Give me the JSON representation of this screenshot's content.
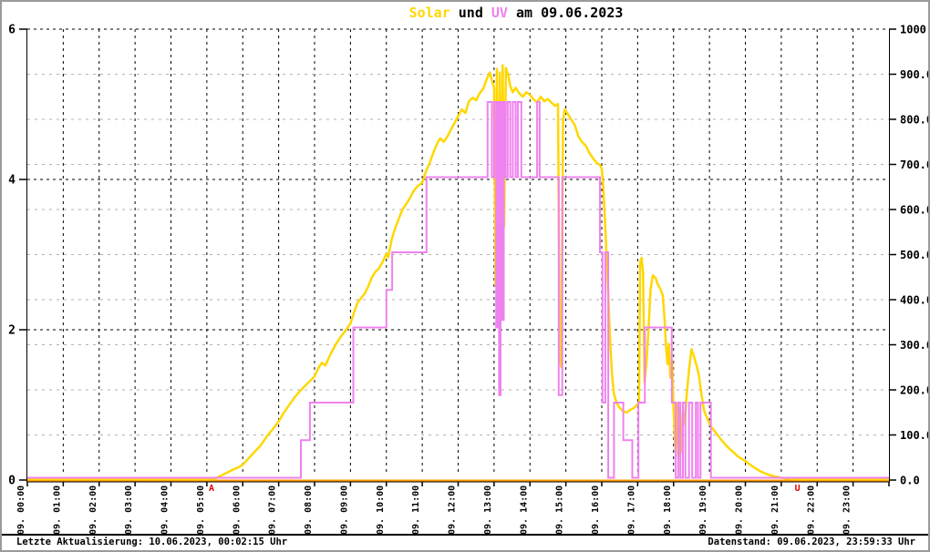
{
  "title": {
    "solar": "Solar",
    "und": " und ",
    "uv": "UV",
    "date": " am 09.06.2023"
  },
  "status_bar": {
    "left": "Letzte Aktualisierung: 10.06.2023, 00:02:15 Uhr",
    "right": "Datenstand: 09.06.2023, 23:59:33 Uhr"
  },
  "chart_data": {
    "type": "line",
    "title": "Solar und UV am 09.06.2023",
    "colors": {
      "solar": "#FFD700",
      "uv": "#EE82EE",
      "zero_line": "#FF9800",
      "marker": "#DD0000",
      "grid_major": "#000000",
      "grid_minor": "#b2b2b2"
    },
    "x_axis": {
      "hours": 24,
      "labels": [
        "09. 00:00",
        "09. 01:00",
        "09. 02:00",
        "09. 03:00",
        "09. 04:00",
        "09. 05:00",
        "09. 06:00",
        "09. 07:00",
        "09. 08:00",
        "09. 09:00",
        "09. 10:00",
        "09. 11:00",
        "09. 12:00",
        "09. 13:00",
        "09. 14:00",
        "09. 15:00",
        "09. 16:00",
        "09. 17:00",
        "09. 18:00",
        "09. 19:00",
        "09. 20:00",
        "09. 21:00",
        "09. 22:00",
        "09. 23:00"
      ]
    },
    "y_left": {
      "min": 0,
      "max": 6,
      "tick_step": 2,
      "labels": [
        "0",
        "2",
        "4",
        "6"
      ]
    },
    "y_right": {
      "min": 0,
      "max": 1000,
      "tick_step": 100,
      "labels": [
        "0.0",
        "100.0",
        "200.0",
        "300.0",
        "400.0",
        "500.0",
        "600.0",
        "700.0",
        "800.0",
        "900.0",
        "1000.0"
      ]
    },
    "markers": [
      {
        "label": "A",
        "t": 5.13
      },
      {
        "label": "U",
        "t": 21.45
      }
    ],
    "series": [
      {
        "name": "Solar",
        "axis": "right",
        "style": "line",
        "points": [
          [
            0,
            0
          ],
          [
            5.2,
            0
          ],
          [
            5.35,
            6
          ],
          [
            5.5,
            12
          ],
          [
            5.7,
            20
          ],
          [
            5.9,
            27
          ],
          [
            6.0,
            32
          ],
          [
            6.15,
            45
          ],
          [
            6.3,
            58
          ],
          [
            6.5,
            75
          ],
          [
            6.7,
            98
          ],
          [
            6.85,
            112
          ],
          [
            7.0,
            128
          ],
          [
            7.15,
            148
          ],
          [
            7.3,
            165
          ],
          [
            7.45,
            182
          ],
          [
            7.6,
            196
          ],
          [
            7.75,
            208
          ],
          [
            7.9,
            220
          ],
          [
            8.0,
            228
          ],
          [
            8.1,
            245
          ],
          [
            8.2,
            258
          ],
          [
            8.3,
            252
          ],
          [
            8.45,
            278
          ],
          [
            8.6,
            300
          ],
          [
            8.75,
            318
          ],
          [
            8.85,
            328
          ],
          [
            9.0,
            345
          ],
          [
            9.1,
            370
          ],
          [
            9.2,
            392
          ],
          [
            9.3,
            402
          ],
          [
            9.4,
            412
          ],
          [
            9.5,
            428
          ],
          [
            9.6,
            448
          ],
          [
            9.7,
            460
          ],
          [
            9.8,
            468
          ],
          [
            9.9,
            482
          ],
          [
            10.0,
            500
          ],
          [
            10.05,
            492
          ],
          [
            10.15,
            532
          ],
          [
            10.25,
            558
          ],
          [
            10.35,
            578
          ],
          [
            10.45,
            598
          ],
          [
            10.55,
            610
          ],
          [
            10.65,
            622
          ],
          [
            10.75,
            638
          ],
          [
            10.85,
            648
          ],
          [
            11.0,
            658
          ],
          [
            11.1,
            682
          ],
          [
            11.2,
            700
          ],
          [
            11.3,
            722
          ],
          [
            11.4,
            742
          ],
          [
            11.5,
            756
          ],
          [
            11.6,
            748
          ],
          [
            11.7,
            760
          ],
          [
            11.8,
            775
          ],
          [
            11.9,
            790
          ],
          [
            12.0,
            805
          ],
          [
            12.1,
            820
          ],
          [
            12.2,
            812
          ],
          [
            12.3,
            838
          ],
          [
            12.4,
            846
          ],
          [
            12.5,
            840
          ],
          [
            12.6,
            856
          ],
          [
            12.7,
            866
          ],
          [
            12.8,
            888
          ],
          [
            12.88,
            902
          ],
          [
            12.95,
            882
          ],
          [
            13.0,
            868
          ],
          [
            13.04,
            430
          ],
          [
            13.08,
            910
          ],
          [
            13.12,
            352
          ],
          [
            13.16,
            902
          ],
          [
            13.2,
            478
          ],
          [
            13.24,
            918
          ],
          [
            13.28,
            560
          ],
          [
            13.33,
            912
          ],
          [
            13.4,
            895
          ],
          [
            13.45,
            872
          ],
          [
            13.52,
            858
          ],
          [
            13.6,
            868
          ],
          [
            13.7,
            856
          ],
          [
            13.8,
            848
          ],
          [
            13.9,
            858
          ],
          [
            14.0,
            852
          ],
          [
            14.1,
            842
          ],
          [
            14.2,
            836
          ],
          [
            14.3,
            848
          ],
          [
            14.4,
            838
          ],
          [
            14.5,
            843
          ],
          [
            14.6,
            835
          ],
          [
            14.7,
            828
          ],
          [
            14.78,
            832
          ],
          [
            14.81,
            520
          ],
          [
            14.84,
            258
          ],
          [
            14.88,
            248
          ],
          [
            14.92,
            795
          ],
          [
            14.97,
            820
          ],
          [
            15.05,
            810
          ],
          [
            15.15,
            798
          ],
          [
            15.25,
            785
          ],
          [
            15.35,
            760
          ],
          [
            15.45,
            748
          ],
          [
            15.55,
            740
          ],
          [
            15.65,
            724
          ],
          [
            15.75,
            712
          ],
          [
            15.85,
            702
          ],
          [
            15.95,
            697
          ],
          [
            16.0,
            688
          ],
          [
            16.04,
            650
          ],
          [
            16.09,
            575
          ],
          [
            16.14,
            488
          ],
          [
            16.19,
            392
          ],
          [
            16.24,
            298
          ],
          [
            16.29,
            228
          ],
          [
            16.34,
            188
          ],
          [
            16.42,
            168
          ],
          [
            16.5,
            158
          ],
          [
            16.6,
            150
          ],
          [
            16.7,
            148
          ],
          [
            16.8,
            154
          ],
          [
            16.9,
            158
          ],
          [
            17.0,
            166
          ],
          [
            17.04,
            172
          ],
          [
            17.07,
            482
          ],
          [
            17.11,
            491
          ],
          [
            17.15,
            458
          ],
          [
            17.19,
            215
          ],
          [
            17.24,
            252
          ],
          [
            17.3,
            330
          ],
          [
            17.36,
            420
          ],
          [
            17.42,
            452
          ],
          [
            17.5,
            446
          ],
          [
            17.56,
            432
          ],
          [
            17.63,
            422
          ],
          [
            17.7,
            408
          ],
          [
            17.75,
            355
          ],
          [
            17.79,
            295
          ],
          [
            17.83,
            255
          ],
          [
            17.87,
            300
          ],
          [
            17.91,
            225
          ],
          [
            17.96,
            262
          ],
          [
            18.0,
            152
          ],
          [
            18.05,
            64
          ],
          [
            18.09,
            168
          ],
          [
            18.13,
            50
          ],
          [
            18.17,
            158
          ],
          [
            18.21,
            60
          ],
          [
            18.26,
            150
          ],
          [
            18.31,
            122
          ],
          [
            18.36,
            182
          ],
          [
            18.43,
            242
          ],
          [
            18.5,
            288
          ],
          [
            18.57,
            272
          ],
          [
            18.64,
            252
          ],
          [
            18.71,
            228
          ],
          [
            18.78,
            186
          ],
          [
            18.85,
            152
          ],
          [
            18.95,
            132
          ],
          [
            19.05,
            116
          ],
          [
            19.15,
            106
          ],
          [
            19.3,
            90
          ],
          [
            19.45,
            76
          ],
          [
            19.6,
            64
          ],
          [
            19.8,
            50
          ],
          [
            20.0,
            40
          ],
          [
            20.2,
            28
          ],
          [
            20.4,
            18
          ],
          [
            20.6,
            11
          ],
          [
            20.8,
            6
          ],
          [
            21.0,
            3
          ],
          [
            21.2,
            1
          ],
          [
            21.35,
            0
          ],
          [
            24,
            0
          ]
        ]
      },
      {
        "name": "UV",
        "axis": "left",
        "style": "step",
        "points": [
          [
            0,
            0
          ],
          [
            7.62,
            0.5
          ],
          [
            7.87,
            1
          ],
          [
            9.08,
            2
          ],
          [
            10.0,
            2.5
          ],
          [
            10.16,
            3
          ],
          [
            11.12,
            4
          ],
          [
            12.82,
            5
          ],
          [
            12.94,
            4
          ],
          [
            13.0,
            5
          ],
          [
            13.06,
            2
          ],
          [
            13.1,
            5
          ],
          [
            13.14,
            1.1
          ],
          [
            13.18,
            5
          ],
          [
            13.23,
            2.1
          ],
          [
            13.27,
            5
          ],
          [
            13.32,
            4
          ],
          [
            13.38,
            5
          ],
          [
            13.45,
            4
          ],
          [
            13.52,
            5
          ],
          [
            13.6,
            4
          ],
          [
            13.66,
            5
          ],
          [
            13.76,
            4
          ],
          [
            14.2,
            5
          ],
          [
            14.27,
            4
          ],
          [
            14.8,
            1.1
          ],
          [
            14.9,
            4
          ],
          [
            15.95,
            3
          ],
          [
            16.02,
            1
          ],
          [
            16.1,
            3
          ],
          [
            16.18,
            0
          ],
          [
            16.34,
            1
          ],
          [
            16.6,
            0.5
          ],
          [
            16.85,
            0
          ],
          [
            17.02,
            1
          ],
          [
            17.2,
            2
          ],
          [
            17.95,
            1
          ],
          [
            18.06,
            0
          ],
          [
            18.13,
            1
          ],
          [
            18.19,
            0
          ],
          [
            18.26,
            1
          ],
          [
            18.33,
            0
          ],
          [
            18.43,
            1
          ],
          [
            18.52,
            0
          ],
          [
            18.62,
            1
          ],
          [
            18.68,
            0
          ],
          [
            18.75,
            1
          ],
          [
            19.04,
            0
          ]
        ]
      }
    ]
  }
}
